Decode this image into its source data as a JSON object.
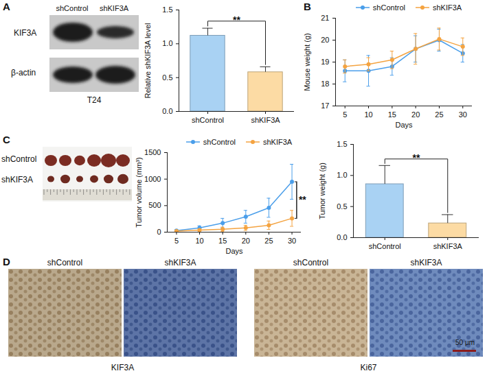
{
  "chart_data": [
    {
      "type": "bar",
      "y_label": "Relative shKIF3A level",
      "categories": [
        "shControl",
        "shKIF3A"
      ],
      "values": [
        1.12,
        0.58
      ],
      "errors": [
        0.11,
        0.08
      ],
      "colors": [
        "#a9d2f3",
        "#fcdba4"
      ],
      "ylim": [
        0,
        1.5
      ],
      "yticks": [
        {
          "value": 0,
          "label": "0.0"
        },
        {
          "value": 0.5,
          "label": "0.5"
        },
        {
          "value": 1,
          "label": "1.0"
        },
        {
          "value": 1.5,
          "label": "1.5"
        }
      ],
      "annotations": [
        {
          "text": "**",
          "between": [
            "shControl",
            "shKIF3A"
          ]
        }
      ]
    },
    {
      "type": "line",
      "y_label": "Mouse weight (g)",
      "x_label": "Days",
      "x": [
        5,
        10,
        15,
        20,
        25,
        30
      ],
      "series": [
        {
          "name": "shControl",
          "color": "#4a9eea",
          "marker": "circle",
          "values": [
            18.6,
            18.6,
            18.8,
            19.6,
            20.0,
            19.4
          ],
          "errors": [
            0.5,
            0.7,
            0.4,
            0.6,
            0.5,
            0.4
          ]
        },
        {
          "name": "shKIF3A",
          "color": "#f4a340",
          "marker": "circle",
          "values": [
            18.8,
            18.9,
            19.1,
            19.6,
            20.05,
            19.7
          ],
          "errors": [
            0.3,
            0.3,
            0.4,
            0.7,
            0.5,
            0.4
          ]
        }
      ],
      "xlim": [
        3,
        32
      ],
      "xticks": [
        5,
        10,
        15,
        20,
        25,
        30
      ],
      "ylim": [
        17,
        21
      ],
      "yticks": [
        17,
        18,
        19,
        20,
        21
      ],
      "legend": "top"
    },
    {
      "type": "line",
      "y_label": "Tumor volume (mm³)",
      "x_label": "Days",
      "x": [
        5,
        10,
        15,
        20,
        25,
        30
      ],
      "series": [
        {
          "name": "shControl",
          "color": "#4a9eea",
          "marker": "circle",
          "values": [
            30,
            80,
            170,
            290,
            460,
            950
          ],
          "errors": [
            15,
            40,
            90,
            120,
            180,
            330
          ]
        },
        {
          "name": "shKIF3A",
          "color": "#f4a340",
          "marker": "circle",
          "values": [
            20,
            40,
            55,
            80,
            130,
            260
          ],
          "errors": [
            10,
            20,
            40,
            50,
            80,
            150
          ]
        }
      ],
      "xlim": [
        3,
        32
      ],
      "xticks": [
        5,
        10,
        15,
        20,
        25,
        30
      ],
      "ylim": [
        0,
        1500
      ],
      "yticks": [
        0,
        500,
        1000,
        1500
      ],
      "legend": "top",
      "annotations": [
        {
          "text": "**",
          "x": 30,
          "between": [
            "shControl",
            "shKIF3A"
          ]
        }
      ]
    },
    {
      "type": "bar",
      "y_label": "Tumor weight (g)",
      "categories": [
        "shControl",
        "shKIF3A"
      ],
      "values": [
        0.86,
        0.23
      ],
      "errors": [
        0.3,
        0.14
      ],
      "colors": [
        "#a9d2f3",
        "#fcdba4"
      ],
      "ylim": [
        0,
        1.5
      ],
      "yticks": [
        {
          "value": 0,
          "label": "0.0"
        },
        {
          "value": 0.5,
          "label": "0.5"
        },
        {
          "value": 1,
          "label": "1.0"
        },
        {
          "value": 1.5,
          "label": "1.5"
        }
      ],
      "annotations": [
        {
          "text": "**",
          "between": [
            "shControl",
            "shKIF3A"
          ]
        }
      ]
    }
  ],
  "figure": {
    "panels": [
      "A",
      "B",
      "C",
      "D"
    ],
    "blot": {
      "columns": [
        "shControl",
        "shKIF3A"
      ],
      "rows": [
        "KIF3A",
        "β-actin"
      ],
      "cell_line": "T24"
    },
    "tumor_photo": {
      "rows": [
        "shControl",
        "shKIF3A"
      ]
    },
    "ihc": {
      "columns": [
        "shControl",
        "shKIF3A",
        "shControl",
        "shKIF3A"
      ],
      "stains": [
        "KIF3A",
        "Ki67"
      ],
      "scale_bar": "50 μm"
    }
  }
}
